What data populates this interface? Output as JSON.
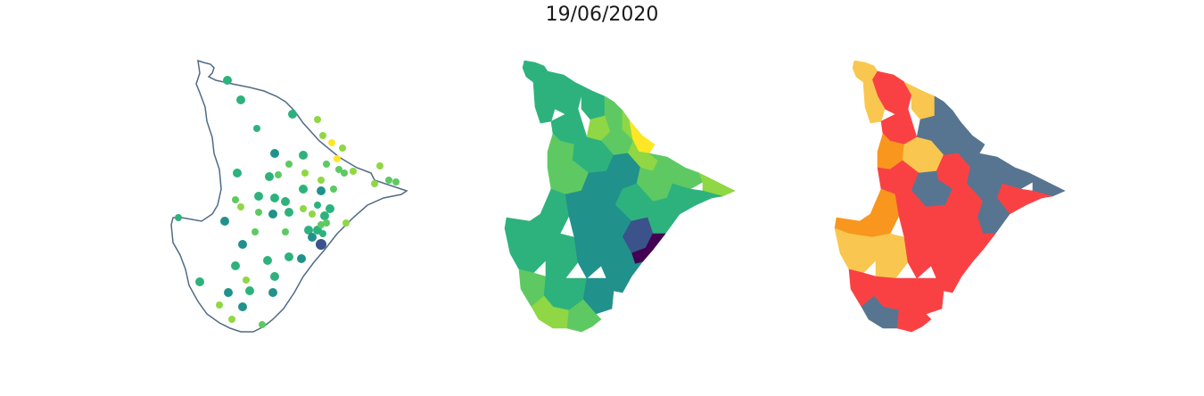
{
  "title": "19/06/2020",
  "outline_color": "#4f6b85",
  "viridis": [
    "#440154",
    "#3b528b",
    "#21918c",
    "#2db27d",
    "#5ec962",
    "#8fd744",
    "#fde725"
  ],
  "category_colors": {
    "red": "#f94144",
    "orange": "#f8961e",
    "yellow": "#f9c74f",
    "slate": "#577590"
  },
  "maps": [
    {
      "name": "point-map",
      "description_color_scale": "viridis"
    },
    {
      "name": "choropleth-map",
      "description_color_scale": "viridis"
    },
    {
      "name": "category-map",
      "description_color_scale": "categorical"
    }
  ]
}
